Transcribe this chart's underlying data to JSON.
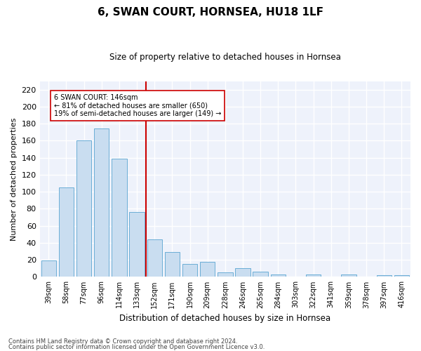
{
  "title": "6, SWAN COURT, HORNSEA, HU18 1LF",
  "subtitle": "Size of property relative to detached houses in Hornsea",
  "xlabel": "Distribution of detached houses by size in Hornsea",
  "ylabel": "Number of detached properties",
  "bar_color": "#c9ddf0",
  "bar_edge_color": "#6baed6",
  "background_color": "#eef2fb",
  "grid_color": "#ffffff",
  "categories": [
    "39sqm",
    "58sqm",
    "77sqm",
    "96sqm",
    "114sqm",
    "133sqm",
    "152sqm",
    "171sqm",
    "190sqm",
    "209sqm",
    "228sqm",
    "246sqm",
    "265sqm",
    "284sqm",
    "303sqm",
    "322sqm",
    "341sqm",
    "359sqm",
    "378sqm",
    "397sqm",
    "416sqm"
  ],
  "values": [
    19,
    105,
    160,
    174,
    139,
    76,
    44,
    29,
    15,
    18,
    5,
    10,
    6,
    3,
    0,
    3,
    0,
    3,
    0,
    2,
    2
  ],
  "ylim": [
    0,
    230
  ],
  "yticks": [
    0,
    20,
    40,
    60,
    80,
    100,
    120,
    140,
    160,
    180,
    200,
    220
  ],
  "vline_x": 6.0,
  "vline_color": "#cc0000",
  "annotation_text": "6 SWAN COURT: 146sqm\n← 81% of detached houses are smaller (650)\n19% of semi-detached houses are larger (149) →",
  "footer1": "Contains HM Land Registry data © Crown copyright and database right 2024.",
  "footer2": "Contains public sector information licensed under the Open Government Licence v3.0."
}
